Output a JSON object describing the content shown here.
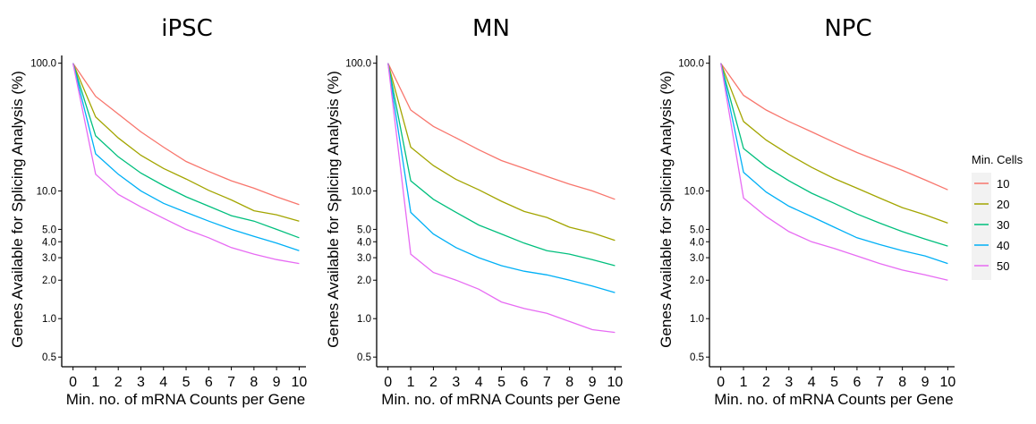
{
  "chart_data": [
    {
      "type": "line",
      "title": "iPSC",
      "xlabel": "Min. no. of mRNA Counts per Gene",
      "ylabel": "Genes Available for Splicing Analysis (%)",
      "yscale": "log",
      "ylim": [
        0.42,
        115
      ],
      "xlim": [
        -0.5,
        10.3
      ],
      "x": [
        0,
        1,
        2,
        3,
        4,
        5,
        6,
        7,
        8,
        9,
        10
      ],
      "xticks": [
        "0",
        "1",
        "2",
        "3",
        "4",
        "5",
        "6",
        "7",
        "8",
        "9",
        "10"
      ],
      "yticks": [
        0.5,
        1.0,
        2.0,
        3.0,
        4.0,
        5.0,
        10.0,
        100.0
      ],
      "ytick_labels": [
        "0.5",
        "1.0",
        "2.0",
        "3.0",
        "4.0",
        "5.0",
        "10.0",
        "100.0"
      ],
      "grid": false,
      "series": [
        {
          "name": "10",
          "color": "#F8766D",
          "values": [
            100,
            55,
            40,
            29,
            22,
            17,
            14.2,
            12,
            10.5,
            9.0,
            7.8
          ]
        },
        {
          "name": "20",
          "color": "#A3A500",
          "values": [
            100,
            38,
            26,
            19,
            15,
            12.4,
            10.1,
            8.5,
            7.0,
            6.5,
            5.8
          ]
        },
        {
          "name": "30",
          "color": "#00BF7D",
          "values": [
            100,
            27,
            18.5,
            13.8,
            11,
            9.0,
            7.6,
            6.4,
            5.8,
            5.0,
            4.3
          ]
        },
        {
          "name": "40",
          "color": "#00B0F6",
          "values": [
            100,
            19.5,
            13.5,
            10,
            8,
            6.8,
            5.8,
            5.0,
            4.4,
            3.9,
            3.4
          ]
        },
        {
          "name": "50",
          "color": "#E76BF3",
          "values": [
            100,
            13.5,
            9.4,
            7.5,
            6.1,
            5.0,
            4.3,
            3.6,
            3.2,
            2.9,
            2.7
          ]
        }
      ]
    },
    {
      "type": "line",
      "title": "MN",
      "xlabel": "Min. no. of mRNA Counts per Gene",
      "ylabel": "Genes Available for Splicing Analysis (%)",
      "yscale": "log",
      "ylim": [
        0.42,
        115
      ],
      "xlim": [
        -0.5,
        10.3
      ],
      "x": [
        0,
        1,
        2,
        3,
        4,
        5,
        6,
        7,
        8,
        9,
        10
      ],
      "xticks": [
        "0",
        "1",
        "2",
        "3",
        "4",
        "5",
        "6",
        "7",
        "8",
        "9",
        "10"
      ],
      "yticks": [
        0.5,
        1.0,
        2.0,
        3.0,
        4.0,
        5.0,
        10.0,
        100.0
      ],
      "ytick_labels": [
        "0.5",
        "1.0",
        "2.0",
        "3.0",
        "4.0",
        "5.0",
        "10.0",
        "100.0"
      ],
      "grid": false,
      "series": [
        {
          "name": "10",
          "color": "#F8766D",
          "values": [
            100,
            43,
            32,
            26,
            21,
            17.3,
            15,
            13,
            11.3,
            10.0,
            8.6
          ]
        },
        {
          "name": "20",
          "color": "#A3A500",
          "values": [
            100,
            22,
            15.8,
            12.3,
            10.2,
            8.3,
            6.9,
            6.2,
            5.2,
            4.7,
            4.1
          ]
        },
        {
          "name": "30",
          "color": "#00BF7D",
          "values": [
            100,
            12,
            8.6,
            6.8,
            5.4,
            4.6,
            3.9,
            3.4,
            3.2,
            2.9,
            2.6
          ]
        },
        {
          "name": "40",
          "color": "#00B0F6",
          "values": [
            100,
            6.8,
            4.6,
            3.6,
            3.0,
            2.6,
            2.35,
            2.2,
            2.0,
            1.8,
            1.6
          ]
        },
        {
          "name": "50",
          "color": "#E76BF3",
          "values": [
            100,
            3.2,
            2.3,
            2.0,
            1.7,
            1.35,
            1.2,
            1.1,
            0.95,
            0.82,
            0.78
          ]
        }
      ]
    },
    {
      "type": "line",
      "title": "NPC",
      "xlabel": "Min. no. of mRNA Counts per Gene",
      "ylabel": "Genes Available for Splicing Analysis (%)",
      "yscale": "log",
      "ylim": [
        0.42,
        115
      ],
      "xlim": [
        -0.5,
        10.3
      ],
      "x": [
        0,
        1,
        2,
        3,
        4,
        5,
        6,
        7,
        8,
        9,
        10
      ],
      "xticks": [
        "0",
        "1",
        "2",
        "3",
        "4",
        "5",
        "6",
        "7",
        "8",
        "9",
        "10"
      ],
      "yticks": [
        0.5,
        1.0,
        2.0,
        3.0,
        4.0,
        5.0,
        10.0,
        100.0
      ],
      "ytick_labels": [
        "0.5",
        "1.0",
        "2.0",
        "3.0",
        "4.0",
        "5.0",
        "10.0",
        "100.0"
      ],
      "grid": false,
      "series": [
        {
          "name": "10",
          "color": "#F8766D",
          "values": [
            100,
            56,
            43,
            35,
            29,
            24,
            20,
            17,
            14.5,
            12.2,
            10.2
          ]
        },
        {
          "name": "20",
          "color": "#A3A500",
          "values": [
            100,
            35,
            25,
            19.3,
            15.3,
            12.5,
            10.5,
            8.8,
            7.4,
            6.5,
            5.6
          ]
        },
        {
          "name": "30",
          "color": "#00BF7D",
          "values": [
            100,
            21.5,
            15.5,
            12,
            9.6,
            8.0,
            6.6,
            5.6,
            4.8,
            4.2,
            3.7
          ]
        },
        {
          "name": "40",
          "color": "#00B0F6",
          "values": [
            100,
            14,
            9.8,
            7.6,
            6.3,
            5.2,
            4.3,
            3.8,
            3.4,
            3.1,
            2.7
          ]
        },
        {
          "name": "50",
          "color": "#E76BF3",
          "values": [
            100,
            8.8,
            6.3,
            4.8,
            4.0,
            3.55,
            3.1,
            2.7,
            2.4,
            2.2,
            2.0
          ]
        }
      ]
    }
  ],
  "legend": {
    "title": "Min. Cells",
    "placement": "right",
    "items": [
      {
        "label": "10",
        "color": "#F8766D"
      },
      {
        "label": "20",
        "color": "#A3A500"
      },
      {
        "label": "30",
        "color": "#00BF7D"
      },
      {
        "label": "40",
        "color": "#00B0F6"
      },
      {
        "label": "50",
        "color": "#E76BF3"
      }
    ]
  }
}
